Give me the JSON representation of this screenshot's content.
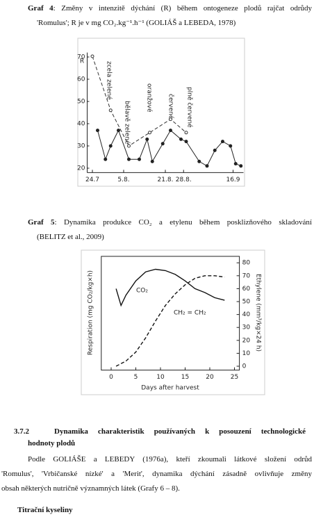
{
  "graf4": {
    "label": "Graf 4",
    "lines": [
      ": Změny v intenzitě dýchání (R) během ontogeneze plodů rajčat odrůdy",
      "'Romulus'; R je v mg CO₂.kg⁻¹.h⁻¹ (GOLIÁŠ a LEBEDA, 1978)"
    ]
  },
  "graf5": {
    "label": "Graf 5",
    "lines": [
      ": Dynamika produkce CO₂ a etylenu během posklizňového skladování",
      "(BELITZ et al., 2009)"
    ]
  },
  "section": {
    "number": "3.7.2",
    "title_lines": [
      "Dynamika charakteristik používaných k posouzení technologické",
      "hodnoty plodů"
    ]
  },
  "paragraph": [
    "Podle GOLIÁŠE a LEBEDY (1976a), kteří zkoumali látkové složení odrůd",
    "'Romulus', 'Vrbičanské nízké' a 'Merit', dynamika dýchání zásadně ovlivňuje změny",
    "obsah některých nutričně významných látek (Grafy 6 – 8)."
  ],
  "subheading": "Titrační kyseliny",
  "chart_data": [
    {
      "type": "line",
      "ylabel": "R",
      "xlim": [
        -2,
        58
      ],
      "xticks": [
        {
          "value": 0,
          "label": "24.7"
        },
        {
          "value": 12,
          "label": "5.8."
        },
        {
          "value": 28,
          "label": "21.8."
        },
        {
          "value": 35,
          "label": "28.8."
        },
        {
          "value": 54,
          "label": "16.9"
        }
      ],
      "ylim": [
        18,
        72
      ],
      "yticks": [
        20,
        30,
        40,
        50,
        60,
        70
      ],
      "annotations": [
        "zcela zelené",
        "bělavě zelené",
        "oranžové",
        "červené",
        "plně červené"
      ],
      "series": [
        {
          "color": "#333333",
          "style": "dashed",
          "marker": "open",
          "x": [
            0,
            7,
            14,
            22,
            30,
            36
          ],
          "values": [
            70.3,
            46,
            30,
            36,
            42,
            36
          ]
        },
        {
          "color": "#222222",
          "style": "solid",
          "marker": "filled",
          "x": [
            2,
            5,
            7,
            10,
            14,
            18,
            21,
            23,
            27,
            30,
            34,
            36,
            41,
            44,
            47,
            50,
            53,
            55,
            57
          ],
          "values": [
            37,
            24,
            30,
            37,
            24,
            24,
            33,
            23,
            31,
            37,
            33,
            32,
            23,
            21,
            28,
            32,
            30,
            22,
            21
          ]
        }
      ]
    },
    {
      "type": "line",
      "xlabel": "Days after harvest",
      "ylabel": "Respiration (mg CO₂/kg×h)",
      "y2label": "Ethylene (mm³/kg×24 h)",
      "xlim": [
        -2,
        26
      ],
      "xticks": [
        0,
        5,
        10,
        15,
        20,
        25
      ],
      "ylim": [
        -3,
        85
      ],
      "y2lim": [
        -3,
        85
      ],
      "y2ticks": [
        0,
        10,
        20,
        30,
        40,
        50,
        60,
        70,
        80
      ],
      "series": [
        {
          "name": "CO₂",
          "color": "#111111",
          "style": "solid",
          "x": [
            1,
            2,
            3,
            5,
            7,
            9,
            11,
            13,
            15,
            17,
            19,
            21,
            23
          ],
          "values": [
            60,
            47,
            55,
            66,
            73,
            75,
            74,
            71,
            66,
            60,
            57,
            53,
            51
          ]
        },
        {
          "name": "CH₂ = CH₂",
          "color": "#111111",
          "style": "dashed",
          "axis": "y2",
          "x": [
            1,
            3,
            5,
            7,
            9,
            11,
            13,
            15,
            17,
            19,
            21,
            23
          ],
          "values": [
            0,
            4,
            11,
            22,
            35,
            47,
            56,
            63,
            68,
            70,
            70,
            69
          ]
        }
      ]
    }
  ]
}
